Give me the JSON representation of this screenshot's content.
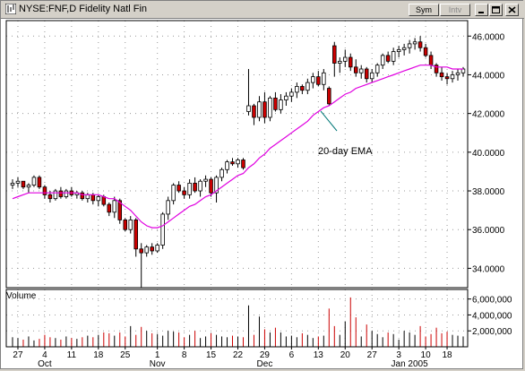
{
  "window": {
    "title": "NYSE:FNF,D Fidelity Natl Fin",
    "buttons": {
      "sym": "Sym",
      "intv": "Intv"
    }
  },
  "colors": {
    "up": "#ffffff",
    "down": "#cc0000",
    "ema": "#e000e0",
    "axis": "#000000",
    "annotation_line": "#007777"
  },
  "chart_data": [
    {
      "type": "candlestick",
      "ylim": [
        33.0,
        46.8
      ],
      "yticks": [
        "46.0000",
        "44.0000",
        "42.0000",
        "40.0000",
        "38.0000",
        "36.0000",
        "34.0000"
      ],
      "ytick_values": [
        46,
        44,
        42,
        40,
        38,
        36,
        34
      ],
      "grid": true,
      "annotation": "20-day EMA",
      "ohlc": [
        [
          38.3,
          38.6,
          38.1,
          38.4
        ],
        [
          38.4,
          38.7,
          38.2,
          38.5
        ],
        [
          38.5,
          38.5,
          38.1,
          38.2
        ],
        [
          38.2,
          38.4,
          37.9,
          38.3
        ],
        [
          38.3,
          38.8,
          38.2,
          38.7
        ],
        [
          38.7,
          38.8,
          38.1,
          38.2
        ],
        [
          38.2,
          38.3,
          37.6,
          37.8
        ],
        [
          37.8,
          38.0,
          37.4,
          37.6
        ],
        [
          37.6,
          38.1,
          37.5,
          38.0
        ],
        [
          38.0,
          38.2,
          37.6,
          37.7
        ],
        [
          37.7,
          38.1,
          37.6,
          38.0
        ],
        [
          38.0,
          38.2,
          37.7,
          37.8
        ],
        [
          37.8,
          38.0,
          37.6,
          37.9
        ],
        [
          37.9,
          38.0,
          37.5,
          37.6
        ],
        [
          37.6,
          37.9,
          37.4,
          37.8
        ],
        [
          37.8,
          37.9,
          37.3,
          37.5
        ],
        [
          37.5,
          37.8,
          37.2,
          37.7
        ],
        [
          37.7,
          37.8,
          37.2,
          37.3
        ],
        [
          37.3,
          37.4,
          36.7,
          36.9
        ],
        [
          36.9,
          37.7,
          36.6,
          37.5
        ],
        [
          37.5,
          37.6,
          36.3,
          36.5
        ],
        [
          36.5,
          36.6,
          35.9,
          36.0
        ],
        [
          36.0,
          36.7,
          35.8,
          36.5
        ],
        [
          36.5,
          36.6,
          34.6,
          35.0
        ],
        [
          35.0,
          35.3,
          33.0,
          34.8
        ],
        [
          34.8,
          35.2,
          34.6,
          35.1
        ],
        [
          35.1,
          35.3,
          34.7,
          34.9
        ],
        [
          34.9,
          35.3,
          34.8,
          35.2
        ],
        [
          35.2,
          36.9,
          35.0,
          36.8
        ],
        [
          36.8,
          37.7,
          36.5,
          37.5
        ],
        [
          37.5,
          38.4,
          37.3,
          38.3
        ],
        [
          38.3,
          38.5,
          37.9,
          38.0
        ],
        [
          38.0,
          38.2,
          37.6,
          37.8
        ],
        [
          37.8,
          38.6,
          37.6,
          38.4
        ],
        [
          38.4,
          38.7,
          37.9,
          38.0
        ],
        [
          38.0,
          38.6,
          37.7,
          38.5
        ],
        [
          38.5,
          38.8,
          38.2,
          38.6
        ],
        [
          38.6,
          38.7,
          37.7,
          37.9
        ],
        [
          37.9,
          38.8,
          37.4,
          38.7
        ],
        [
          38.7,
          39.2,
          38.5,
          39.1
        ],
        [
          39.1,
          39.6,
          38.9,
          39.5
        ],
        [
          39.5,
          39.7,
          39.3,
          39.4
        ],
        [
          39.4,
          39.7,
          39.2,
          39.6
        ],
        [
          39.6,
          39.7,
          39.1,
          39.2
        ],
        [
          42.1,
          44.3,
          41.9,
          42.4
        ],
        [
          42.4,
          42.5,
          41.4,
          41.8
        ],
        [
          41.8,
          42.9,
          41.6,
          42.6
        ],
        [
          42.6,
          43.1,
          41.5,
          41.8
        ],
        [
          41.8,
          42.9,
          41.6,
          42.8
        ],
        [
          42.8,
          43.1,
          42.1,
          42.2
        ],
        [
          42.2,
          43.0,
          42.0,
          42.7
        ],
        [
          42.7,
          43.1,
          42.4,
          42.9
        ],
        [
          42.9,
          43.3,
          42.6,
          43.1
        ],
        [
          43.1,
          43.6,
          42.8,
          43.4
        ],
        [
          43.4,
          43.5,
          43.0,
          43.2
        ],
        [
          43.2,
          43.8,
          43.0,
          43.6
        ],
        [
          43.6,
          44.1,
          43.3,
          43.9
        ],
        [
          43.9,
          44.2,
          43.4,
          43.5
        ],
        [
          43.5,
          44.3,
          43.2,
          44.1
        ],
        [
          43.3,
          43.4,
          42.4,
          42.5
        ],
        [
          45.5,
          45.7,
          43.9,
          44.6
        ],
        [
          44.6,
          44.9,
          44.1,
          44.7
        ],
        [
          44.7,
          45.3,
          44.4,
          44.9
        ],
        [
          44.9,
          45.1,
          44.2,
          44.4
        ],
        [
          44.4,
          44.8,
          43.9,
          44.1
        ],
        [
          44.1,
          44.5,
          43.8,
          44.3
        ],
        [
          44.3,
          44.4,
          43.6,
          43.8
        ],
        [
          43.8,
          44.3,
          43.6,
          44.1
        ],
        [
          44.1,
          44.6,
          43.9,
          44.5
        ],
        [
          44.5,
          45.1,
          44.3,
          45.0
        ],
        [
          45.0,
          45.2,
          44.6,
          44.7
        ],
        [
          44.7,
          45.4,
          44.5,
          45.2
        ],
        [
          45.2,
          45.5,
          44.9,
          45.3
        ],
        [
          45.3,
          45.6,
          45.0,
          45.4
        ],
        [
          45.4,
          45.8,
          45.1,
          45.6
        ],
        [
          45.6,
          45.9,
          45.3,
          45.7
        ],
        [
          45.7,
          46.0,
          45.2,
          45.4
        ],
        [
          45.4,
          45.6,
          44.9,
          45.0
        ],
        [
          45.0,
          45.2,
          44.3,
          44.5
        ],
        [
          44.5,
          44.6,
          43.9,
          44.1
        ],
        [
          44.1,
          44.4,
          43.7,
          43.9
        ],
        [
          43.9,
          44.1,
          43.5,
          43.8
        ],
        [
          43.8,
          44.2,
          43.6,
          44.0
        ],
        [
          44.0,
          44.3,
          43.7,
          44.1
        ],
        [
          44.1,
          44.4,
          43.9,
          44.3
        ]
      ],
      "ema": [
        37.6,
        37.7,
        37.8,
        37.9,
        37.9,
        37.9,
        37.9,
        37.9,
        37.9,
        37.9,
        37.9,
        37.9,
        37.9,
        37.8,
        37.8,
        37.8,
        37.8,
        37.7,
        37.6,
        37.6,
        37.4,
        37.2,
        37.0,
        36.7,
        36.4,
        36.2,
        36.1,
        36.1,
        36.2,
        36.4,
        36.6,
        36.8,
        37.0,
        37.2,
        37.3,
        37.5,
        37.7,
        37.8,
        38.0,
        38.2,
        38.4,
        38.6,
        38.8,
        38.9,
        39.2,
        39.4,
        39.7,
        39.9,
        40.2,
        40.4,
        40.6,
        40.8,
        41.0,
        41.2,
        41.4,
        41.6,
        41.9,
        42.1,
        42.3,
        42.4,
        42.6,
        42.8,
        43.0,
        43.1,
        43.3,
        43.4,
        43.5,
        43.6,
        43.7,
        43.8,
        43.9,
        44.0,
        44.1,
        44.2,
        44.3,
        44.4,
        44.5,
        44.5,
        44.5,
        44.4,
        44.4,
        44.4,
        44.3,
        44.3,
        44.3
      ]
    },
    {
      "type": "bar",
      "title": "Volume",
      "ylim": [
        0,
        7200000
      ],
      "yticks": [
        "6,000,000",
        "4,000,000",
        "2,000,000"
      ],
      "ytick_values": [
        6000000,
        4000000,
        2000000
      ],
      "values": [
        1200000,
        1100000,
        900000,
        1300000,
        800000,
        1000000,
        1500000,
        1200000,
        1100000,
        900000,
        1300000,
        1100000,
        1000000,
        1200000,
        1400000,
        1200000,
        1500000,
        1800000,
        1700000,
        1400000,
        1800000,
        1300000,
        2600000,
        1500000,
        2500000,
        2000000,
        1700000,
        1600000,
        1400000,
        2000000,
        1900000,
        1800000,
        1200000,
        1500000,
        2000000,
        1100000,
        1300000,
        1700000,
        1500000,
        1300000,
        1200000,
        1400000,
        1300000,
        1200000,
        5200000,
        1500000,
        3800000,
        2200000,
        1800000,
        2400000,
        1800000,
        1300000,
        1400000,
        1200000,
        1700000,
        1500000,
        1100000,
        1300000,
        1400000,
        4800000,
        2600000,
        1500000,
        3200000,
        6200000,
        3700000,
        1300000,
        2800000,
        2000000,
        1600000,
        1200000,
        1800000,
        1600000,
        900000,
        2000000,
        1800000,
        1500000,
        2600000,
        1300000,
        1600000,
        2400000,
        1700000,
        1900000,
        1500000,
        1400000,
        1300000
      ]
    }
  ],
  "xaxis": {
    "ticks": [
      {
        "i": 1,
        "label": "27"
      },
      {
        "i": 6,
        "label": "4"
      },
      {
        "i": 11,
        "label": "11"
      },
      {
        "i": 16,
        "label": "18"
      },
      {
        "i": 21,
        "label": "25"
      },
      {
        "i": 27,
        "label": "1"
      },
      {
        "i": 32,
        "label": "8"
      },
      {
        "i": 37,
        "label": "15"
      },
      {
        "i": 42,
        "label": "22"
      },
      {
        "i": 47,
        "label": "29"
      },
      {
        "i": 52,
        "label": "6"
      },
      {
        "i": 57,
        "label": "13"
      },
      {
        "i": 62,
        "label": "20"
      },
      {
        "i": 67,
        "label": "27"
      },
      {
        "i": 72,
        "label": "3"
      },
      {
        "i": 77,
        "label": "10"
      },
      {
        "i": 81,
        "label": "18"
      }
    ],
    "months": [
      {
        "i": 6,
        "label": "Oct"
      },
      {
        "i": 27,
        "label": "Nov"
      },
      {
        "i": 47,
        "label": "Dec"
      },
      {
        "i": 74,
        "label": "Jan 2005"
      }
    ]
  }
}
